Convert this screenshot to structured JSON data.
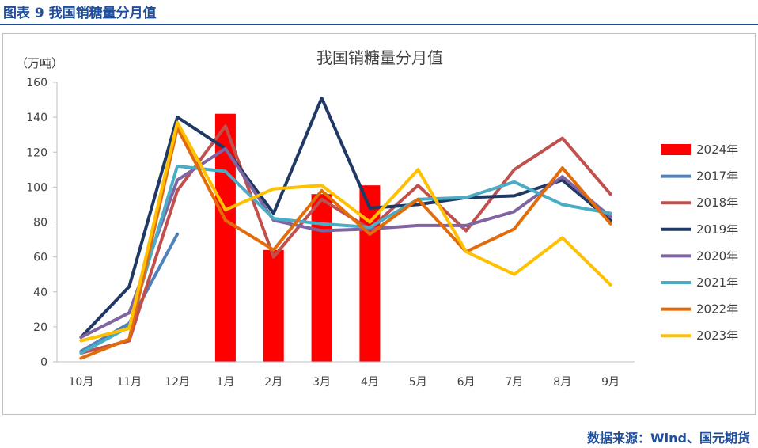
{
  "figure": {
    "label": "图表 9  我国销糖量分月值",
    "source": "数据来源：Wind、国元期货"
  },
  "chart_data": {
    "type": "bar+line",
    "title": "我国销糖量分月值",
    "ylabel": "（万吨）",
    "xlabel": "",
    "ylim": [
      0,
      160
    ],
    "yticks": [
      0,
      20,
      40,
      60,
      80,
      100,
      120,
      140,
      160
    ],
    "categories": [
      "10月",
      "11月",
      "12月",
      "1月",
      "2月",
      "3月",
      "4月",
      "5月",
      "6月",
      "7月",
      "8月",
      "9月"
    ],
    "grid": false,
    "legend_position": "right",
    "bar_series": {
      "name": "2024年",
      "color": "#ff0000",
      "values": [
        null,
        null,
        null,
        142,
        64,
        96,
        101,
        null,
        null,
        null,
        null,
        null
      ]
    },
    "series": [
      {
        "name": "2017年",
        "color": "#4f81bd",
        "values": [
          6,
          22,
          73,
          null,
          null,
          null,
          null,
          null,
          null,
          null,
          null,
          null
        ]
      },
      {
        "name": "2018年",
        "color": "#c0504d",
        "values": [
          5,
          12,
          98,
          135,
          60,
          93,
          76,
          101,
          75,
          110,
          128,
          96
        ]
      },
      {
        "name": "2019年",
        "color": "#1f3864",
        "values": [
          14,
          43,
          140,
          122,
          85,
          151,
          88,
          90,
          94,
          95,
          104,
          81
        ]
      },
      {
        "name": "2020年",
        "color": "#8064a2",
        "values": [
          14,
          28,
          104,
          122,
          81,
          75,
          76,
          78,
          78,
          86,
          106,
          83
        ]
      },
      {
        "name": "2021年",
        "color": "#4bacc6",
        "values": [
          5,
          20,
          112,
          109,
          82,
          79,
          77,
          93,
          94,
          103,
          90,
          85
        ]
      },
      {
        "name": "2022年",
        "color": "#e36c0a",
        "values": [
          2,
          13,
          134,
          81,
          64,
          98,
          73,
          93,
          63,
          76,
          111,
          79
        ]
      },
      {
        "name": "2023年",
        "color": "#ffc000",
        "values": [
          12,
          19,
          137,
          87,
          99,
          101,
          80,
          110,
          63,
          50,
          71,
          44
        ]
      }
    ]
  }
}
